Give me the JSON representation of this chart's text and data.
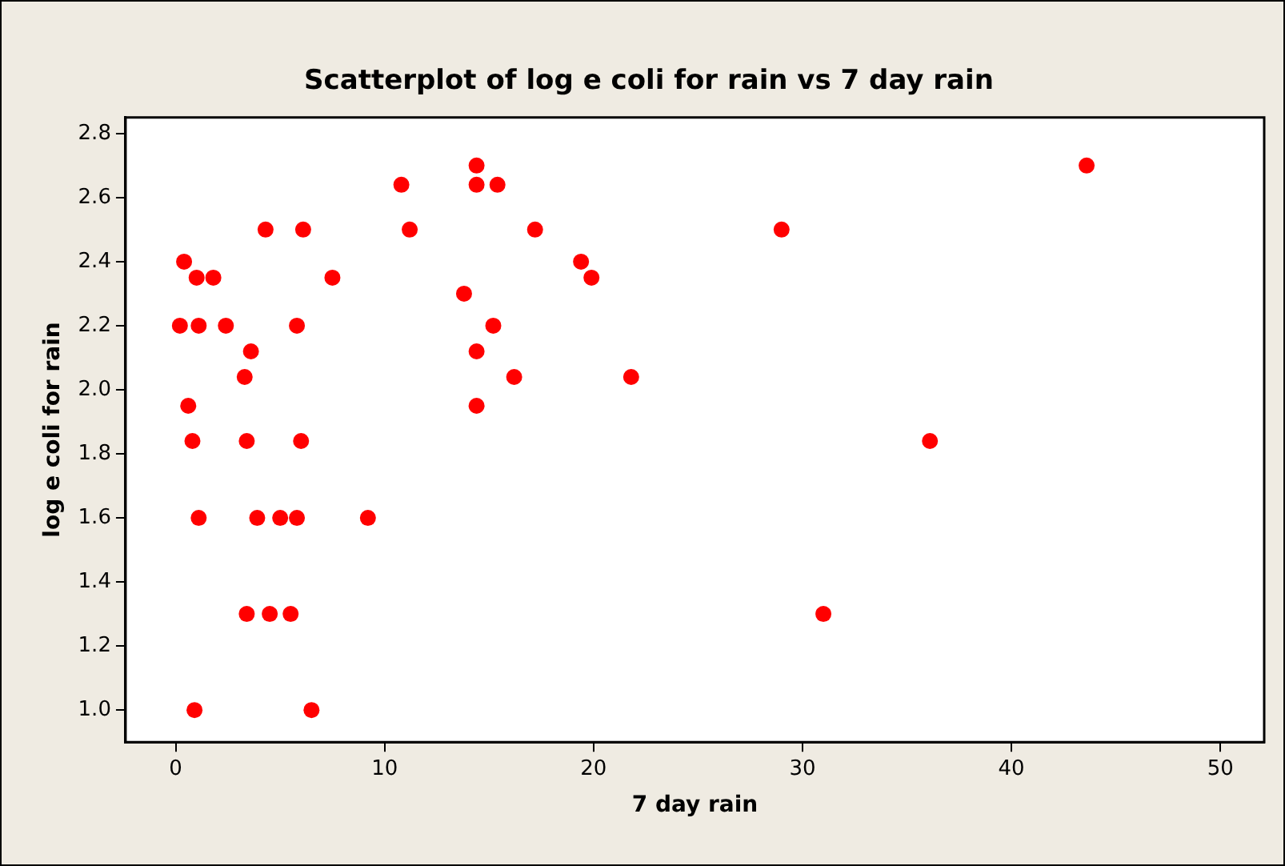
{
  "chart_data": {
    "type": "scatter",
    "title": "Scatterplot of log e coli for rain vs 7 day rain",
    "xlabel": "7 day rain",
    "ylabel": "log e coli for rain",
    "series": [
      {
        "color": "#ff0000",
        "x": [
          0.2,
          0.4,
          0.6,
          0.8,
          1.0,
          1.1,
          1.1,
          0.9,
          1.8,
          2.4,
          3.3,
          3.6,
          3.4,
          3.4,
          3.9,
          4.3,
          4.5,
          5.0,
          5.5,
          5.8,
          5.8,
          6.1,
          6.0,
          6.5,
          7.5,
          9.2,
          10.8,
          11.2,
          13.8,
          14.4,
          14.4,
          14.4,
          14.4,
          15.4,
          15.2,
          16.2,
          17.2,
          19.4,
          19.9,
          21.8,
          29.0,
          31.0,
          36.1,
          43.6
        ],
        "values": [
          2.2,
          2.4,
          1.95,
          1.84,
          2.35,
          2.2,
          1.6,
          1.0,
          2.35,
          2.2,
          2.04,
          2.12,
          1.84,
          1.3,
          1.6,
          2.5,
          1.3,
          1.6,
          1.3,
          1.6,
          2.2,
          2.5,
          1.84,
          1.0,
          2.35,
          1.6,
          2.64,
          2.5,
          2.3,
          2.7,
          2.64,
          2.12,
          1.95,
          2.64,
          2.2,
          2.04,
          2.5,
          2.4,
          2.35,
          2.04,
          2.5,
          1.3,
          1.84,
          2.7
        ]
      }
    ],
    "xlim": [
      -2.4,
      52.1
    ],
    "ylim": [
      0.9,
      2.85
    ],
    "xticks": [
      0,
      10,
      20,
      30,
      40,
      50
    ],
    "yticks": [
      {
        "value": 1,
        "label": "1.0"
      },
      1.2,
      1.4,
      1.6,
      1.8,
      {
        "value": 2,
        "label": "2.0"
      },
      2.2,
      2.4,
      2.6,
      2.8
    ],
    "marker": "circle",
    "grid": false,
    "legend": false
  }
}
